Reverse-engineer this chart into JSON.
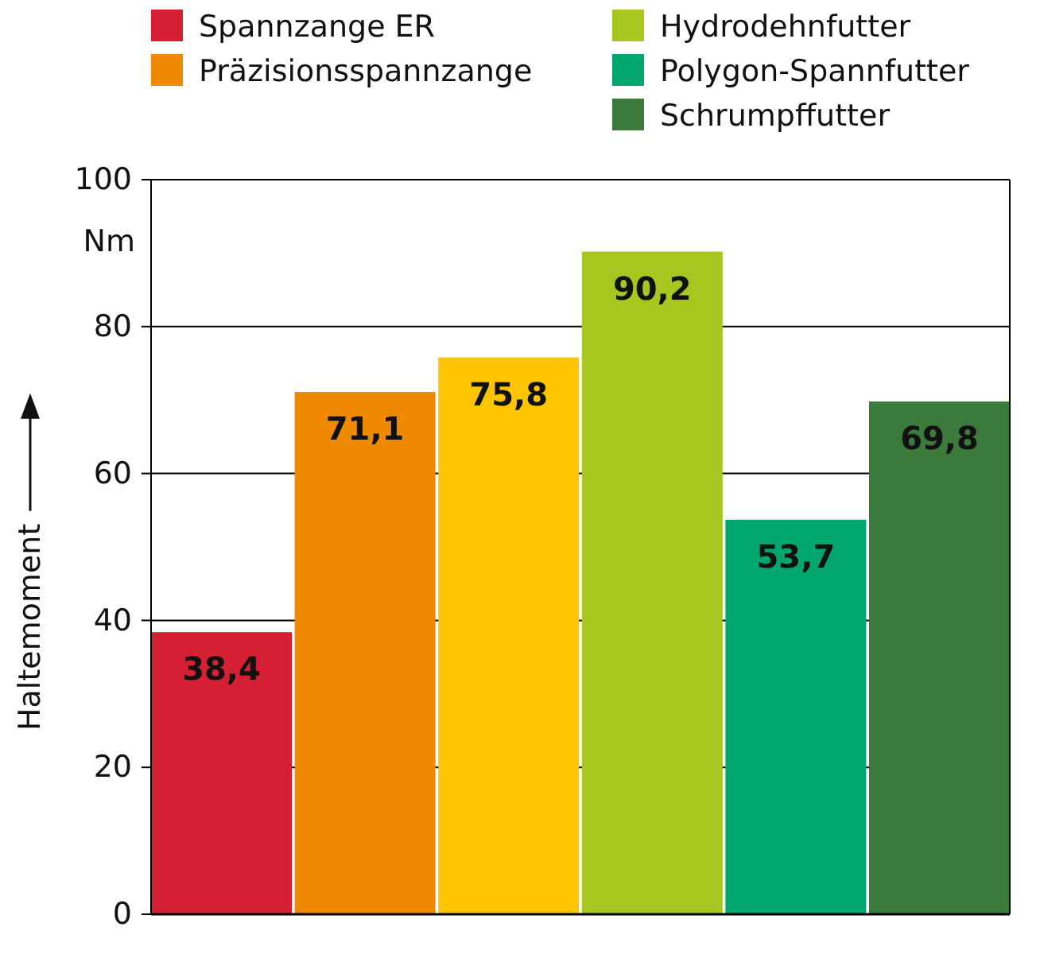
{
  "chart_data": {
    "type": "bar",
    "categories": [
      null
    ],
    "series": [
      {
        "name": "Spannzange ER",
        "color": "#d51f33",
        "values": [
          38.4
        ],
        "value_labels": [
          "38,4"
        ]
      },
      {
        "name": "Präzisionsspannzange",
        "color": "#ef8a00",
        "values": [
          71.1
        ],
        "value_labels": [
          "71,1"
        ]
      },
      {
        "color": "#fcc500",
        "values": [
          75.8
        ],
        "value_labels": [
          "75,8"
        ]
      },
      {
        "name": "Hydrodehnfutter",
        "color": "#a7c61f",
        "values": [
          90.2
        ],
        "value_labels": [
          "90,2"
        ]
      },
      {
        "name": "Polygon-Spannfutter",
        "color": "#00a66e",
        "values": [
          53.7
        ],
        "value_labels": [
          "53,7"
        ]
      },
      {
        "name": "Schrumpffutter",
        "color": "#3b7a3b",
        "values": [
          69.8
        ],
        "value_labels": [
          "69,8"
        ]
      }
    ],
    "ylabel": "Haltemoment",
    "annotations": [
      "Nm"
    ],
    "ylim": [
      0,
      100
    ],
    "yticks": [
      0,
      20,
      40,
      60,
      80,
      100
    ],
    "grid": "y",
    "legend": "top",
    "tick_labels": "y"
  }
}
